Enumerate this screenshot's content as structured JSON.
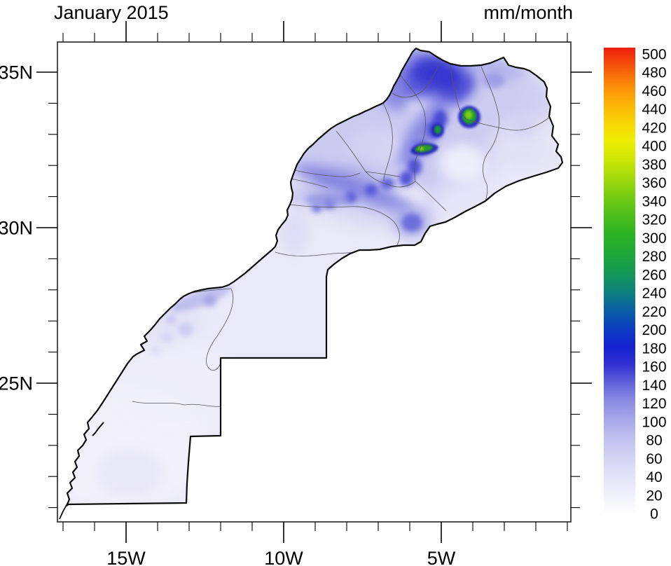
{
  "title": "January 2015",
  "units_label": "mm/month",
  "axes": {
    "lat": {
      "labeled": [
        {
          "text": "35N",
          "deg": 35
        },
        {
          "text": "30N",
          "deg": 30
        },
        {
          "text": "25N",
          "deg": 25
        }
      ],
      "minor_deg": [
        34,
        33,
        32,
        31,
        29,
        28,
        27,
        26,
        24,
        23,
        22,
        21
      ]
    },
    "lon": {
      "labeled": [
        {
          "text": "15W",
          "deg": 15
        },
        {
          "text": "10W",
          "deg": 10
        },
        {
          "text": "5W",
          "deg": 5
        }
      ],
      "minor_deg": [
        17,
        16,
        14,
        13,
        12,
        11,
        9,
        8,
        7,
        6,
        4,
        3,
        2,
        1
      ]
    }
  },
  "colorbar": {
    "labels": [
      "500",
      "480",
      "460",
      "440",
      "420",
      "400",
      "380",
      "360",
      "340",
      "320",
      "300",
      "280",
      "260",
      "240",
      "220",
      "200",
      "180",
      "160",
      "140",
      "120",
      "100",
      "80",
      "60",
      "40",
      "20",
      "0"
    ],
    "min": 0,
    "max": 500,
    "step": 20
  },
  "chart_data": {
    "type": "heatmap",
    "title": "January 2015",
    "units": "mm/month",
    "region": "Morocco and Western Sahara, monthly precipitation field over a lat/lon map",
    "lon_range_deg_west": [
      17.3,
      0.9
    ],
    "lat_range_deg_north": [
      20.6,
      36.0
    ],
    "x_tick_labels": [
      "15W",
      "10W",
      "5W"
    ],
    "y_tick_labels": [
      "35N",
      "30N",
      "25N"
    ],
    "minor_tick_interval_deg": 1,
    "colorbar_levels_mm": [
      0,
      20,
      40,
      60,
      80,
      100,
      120,
      140,
      160,
      180,
      200,
      220,
      240,
      260,
      280,
      300,
      320,
      340,
      360,
      380,
      400,
      420,
      440,
      460,
      480,
      500
    ],
    "colorbar_color_progression_low_to_high": [
      "white",
      "pale blue-violet",
      "light blue",
      "blue",
      "dark blue",
      "teal",
      "green",
      "yellow-green",
      "yellow",
      "orange",
      "red"
    ],
    "palette": {
      "zero": "#ffffff",
      "light": "#e9e8f7",
      "blue": "#2a2ace",
      "green": "#23a822",
      "yellow": "#eeee04",
      "red": "#ee1c0c"
    },
    "legend_position": "right vertical labelbar",
    "grid": false,
    "notable_features": [
      {
        "location": "Rif mountains / far north (6W-4W, 34.3N-35.8N)",
        "precip_mm": "100-200"
      },
      {
        "location": "local maximum spot near 4.1W, 33.6N",
        "precip_mm": "300-340 (green)"
      },
      {
        "location": "local maximum spot near 5.1W, 33.2N",
        "precip_mm": "~300 (green)"
      },
      {
        "location": "elongated maximum near 5.6W, 32.6N",
        "precip_mm": "~300 (green)"
      },
      {
        "location": "Middle/High Atlas diagonal band (8W-4.5W, 30.7N-33N)",
        "precip_mm": "80-160"
      },
      {
        "location": "isolated round spot near 5.9W, 30.2N",
        "precip_mm": "80-140"
      },
      {
        "location": "northwest coastal plains (Rabat-Casablanca-Fes)",
        "precip_mm": "40-120"
      },
      {
        "location": "coastal patch near Tan-Tan (12.5W-11W, ~28N)",
        "precip_mm": "40-80"
      },
      {
        "location": "southeast Morocco (east of Atlas)",
        "precip_mm": "0-40"
      },
      {
        "location": "Western Sahara south of 26N",
        "precip_mm": "0-20"
      }
    ]
  }
}
